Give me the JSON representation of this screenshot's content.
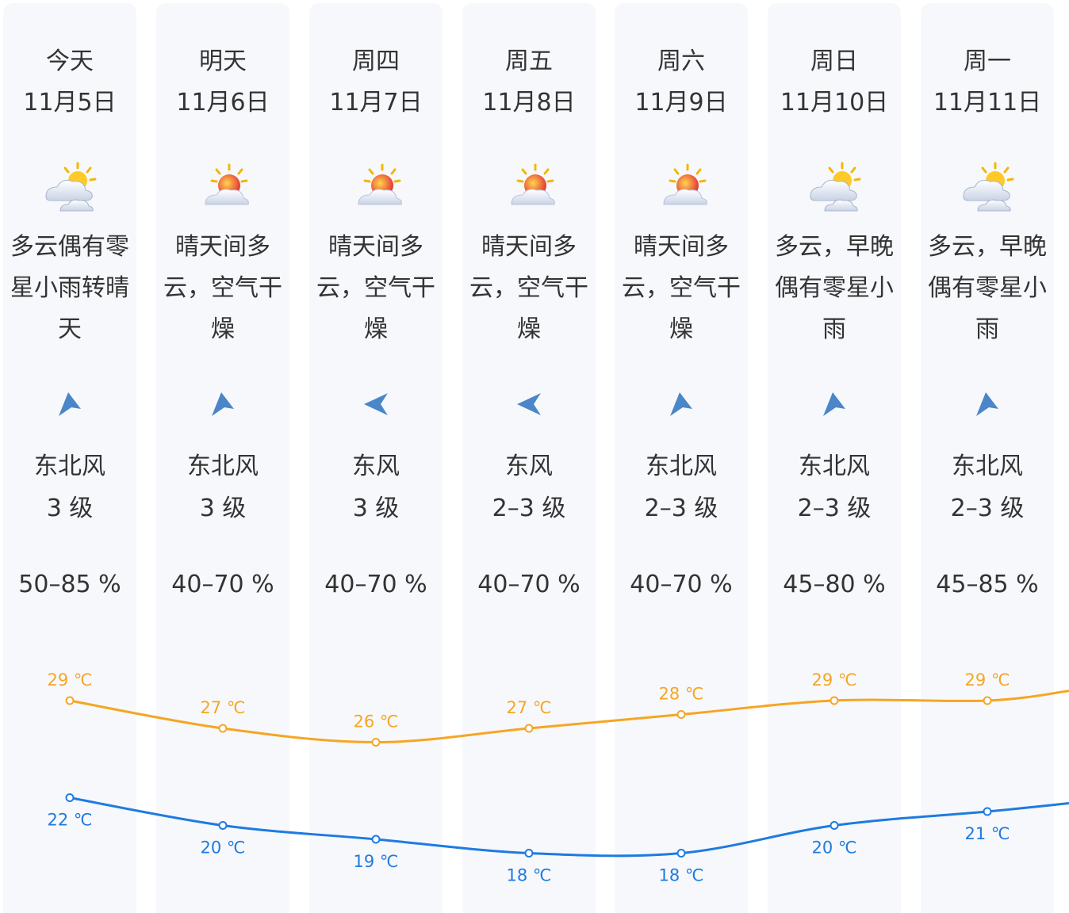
{
  "days": [
    {
      "day": "今天",
      "date": "11月5日",
      "weather": "多云偶有零星小雨转晴天",
      "icon": "partly-cloudy-icon",
      "wind_dir": "东北风",
      "wind_icon": "wind-northeast-icon",
      "wind_level": "3 级",
      "humidity": "50–85 %",
      "high": "29 ℃",
      "low": "22 ℃"
    },
    {
      "day": "明天",
      "date": "11月6日",
      "weather": "晴天间多云，空气干燥",
      "icon": "sunny-cloudy-icon",
      "wind_dir": "东北风",
      "wind_icon": "wind-northeast-icon",
      "wind_level": "3 级",
      "humidity": "40–70 %",
      "high": "27 ℃",
      "low": "20 ℃"
    },
    {
      "day": "周四",
      "date": "11月7日",
      "weather": "晴天间多云，空气干燥",
      "icon": "sunny-cloudy-icon",
      "wind_dir": "东风",
      "wind_icon": "wind-east-icon",
      "wind_level": "3 级",
      "humidity": "40–70 %",
      "high": "26 ℃",
      "low": "19 ℃"
    },
    {
      "day": "周五",
      "date": "11月8日",
      "weather": "晴天间多云，空气干燥",
      "icon": "sunny-cloudy-icon",
      "wind_dir": "东风",
      "wind_icon": "wind-east-icon",
      "wind_level": "2–3 级",
      "humidity": "40–70 %",
      "high": "27 ℃",
      "low": "18 ℃"
    },
    {
      "day": "周六",
      "date": "11月9日",
      "weather": "晴天间多云，空气干燥",
      "icon": "sunny-cloudy-icon",
      "wind_dir": "东北风",
      "wind_icon": "wind-northeast-icon",
      "wind_level": "2–3 级",
      "humidity": "40–70 %",
      "high": "28 ℃",
      "low": "18 ℃"
    },
    {
      "day": "周日",
      "date": "11月10日",
      "weather": "多云，早晚偶有零星小雨",
      "icon": "partly-cloudy-icon",
      "wind_dir": "东北风",
      "wind_icon": "wind-northeast-icon",
      "wind_level": "2–3 级",
      "humidity": "45–80 %",
      "high": "29 ℃",
      "low": "20 ℃"
    },
    {
      "day": "周一",
      "date": "11月11日",
      "weather": "多云，早晚偶有零星小雨",
      "icon": "partly-cloudy-icon",
      "wind_dir": "东北风",
      "wind_icon": "wind-northeast-icon",
      "wind_level": "2–3 级",
      "humidity": "45–85 %",
      "high": "29 ℃",
      "low": "21 ℃"
    }
  ],
  "colors": {
    "high": "#f5a623",
    "low": "#1e7be0"
  },
  "chart_data": {
    "type": "line",
    "categories": [
      "今天",
      "明天",
      "周四",
      "周五",
      "周六",
      "周日",
      "周一"
    ],
    "series": [
      {
        "values": [
          29,
          27,
          26,
          27,
          28,
          29,
          29
        ]
      },
      {
        "values": [
          22,
          20,
          19,
          18,
          18,
          20,
          21
        ]
      }
    ],
    "unit": "℃"
  }
}
